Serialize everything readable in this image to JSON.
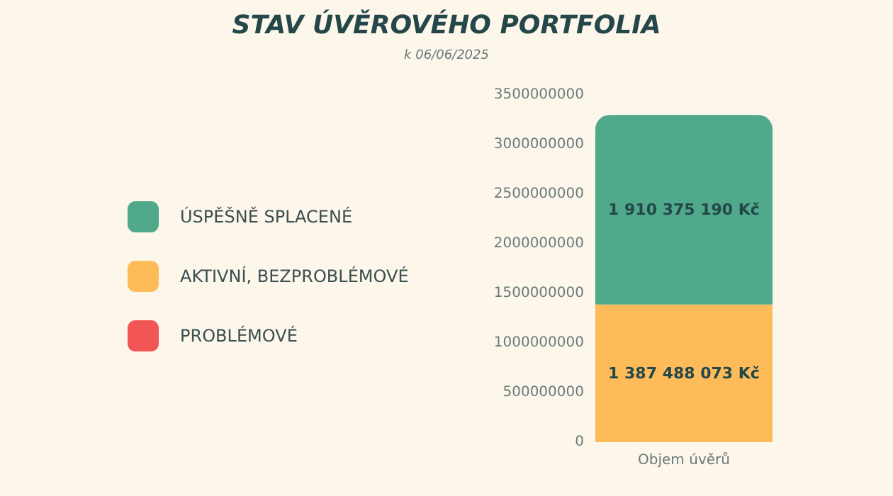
{
  "chart_data": {
    "type": "bar",
    "title": "STAV ÚVĚROVÉHO PORTFOLIA",
    "subtitle": "k 06/06/2025",
    "categories": [
      "Objem úvěrů"
    ],
    "stacked": true,
    "series": [
      {
        "name": "AKTIVNÍ, BEZPROBLÉMOVÉ",
        "color": "#fdbb5a",
        "values": [
          1387488073
        ],
        "value_labels": [
          "1 387 488 073 Kč"
        ]
      },
      {
        "name": "ÚSPĚŠNĚ SPLACENÉ",
        "color": "#4fa98a",
        "values": [
          1910375190
        ],
        "value_labels": [
          "1 910 375 190 Kč"
        ]
      },
      {
        "name": "PROBLÉMOVÉ",
        "color": "#f25555",
        "values": [
          null
        ]
      }
    ],
    "ylim": [
      0,
      3500000000
    ],
    "yticks": [
      0,
      500000000,
      1000000000,
      1500000000,
      2000000000,
      2500000000,
      3000000000,
      3500000000
    ],
    "legend": "left"
  }
}
